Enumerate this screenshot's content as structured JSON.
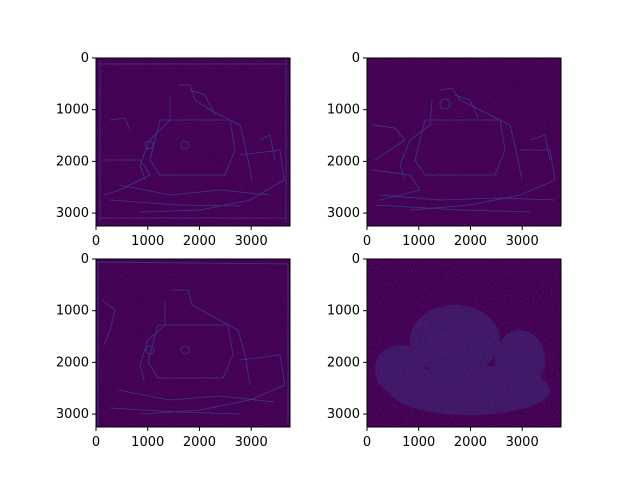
{
  "figure": {
    "background": "#ffffff",
    "colormap": "viridis",
    "image_background_color": "#440154",
    "edge_line_color": "#3b3f8c",
    "frame_color": "#000000"
  },
  "panels": [
    {
      "id": "top-left",
      "content": "edge-detection-map",
      "x_ticks": [
        "0",
        "1000",
        "2000",
        "3000"
      ],
      "y_ticks": [
        "0",
        "1000",
        "2000",
        "3000"
      ]
    },
    {
      "id": "top-right",
      "content": "edge-detection-map",
      "x_ticks": [
        "0",
        "1000",
        "2000",
        "3000"
      ],
      "y_ticks": [
        "0",
        "1000",
        "2000",
        "3000"
      ]
    },
    {
      "id": "bottom-left",
      "content": "edge-detection-map",
      "x_ticks": [
        "0",
        "1000",
        "2000",
        "3000"
      ],
      "y_ticks": [
        "0",
        "1000",
        "2000",
        "3000"
      ]
    },
    {
      "id": "bottom-right",
      "content": "gradient-magnitude-map",
      "x_ticks": [
        "0",
        "1000",
        "2000",
        "3000"
      ],
      "y_ticks": [
        "0",
        "1000",
        "2000",
        "3000"
      ]
    }
  ]
}
